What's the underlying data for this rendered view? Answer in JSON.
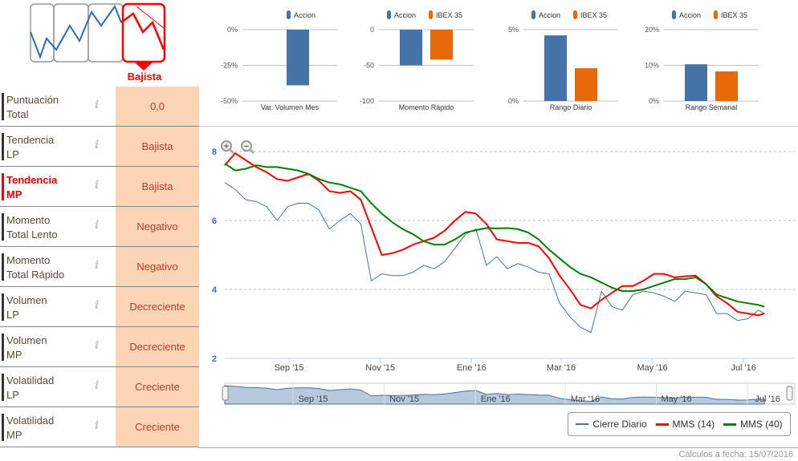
{
  "trend_widget": {
    "label": "Bajista",
    "active_color": "#ff0000"
  },
  "rows": [
    {
      "label1": "Puntuación",
      "label2": "Total",
      "value": "0,0"
    },
    {
      "label1": "Tendencia",
      "label2": "LP",
      "value": "Bajista"
    },
    {
      "label1": "Tendencia",
      "label2": "MP",
      "value": "Bajista",
      "active": true
    },
    {
      "label1": "Momento",
      "label2": "Total Lento",
      "value": "Negativo"
    },
    {
      "label1": "Momento",
      "label2": "Total Rápido",
      "value": "Negativo"
    },
    {
      "label1": "Volumen",
      "label2": "LP",
      "value": "Decreciente"
    },
    {
      "label1": "Volumen",
      "label2": "MP",
      "value": "Decreciente"
    },
    {
      "label1": "Volatilidad",
      "label2": "LP",
      "value": "Creciente"
    },
    {
      "label1": "Volatilidad",
      "label2": "MP",
      "value": "Creciente"
    }
  ],
  "info_icon": "i",
  "colors": {
    "accion": "#4572a7",
    "ibex": "#e8690a",
    "cierre": "#4572a7",
    "mms14": "#ff0000",
    "mms40": "#008000"
  },
  "chart_data": [
    {
      "type": "bar",
      "title": "Var. Volumen Mes",
      "categories": [
        "Var. Volumen Mes"
      ],
      "series": [
        {
          "name": "Accion",
          "values": [
            -39
          ]
        }
      ],
      "ylim": [
        -50,
        0
      ],
      "yticks": [
        "0%",
        "-25%",
        "-50%"
      ],
      "ytick_values": [
        0,
        -25,
        -50
      ]
    },
    {
      "type": "bar",
      "title": "Momento Rápido",
      "categories": [
        "Momento Rápido"
      ],
      "series": [
        {
          "name": "Accion",
          "values": [
            -50
          ]
        },
        {
          "name": "IBEX 35",
          "values": [
            -42
          ]
        }
      ],
      "ylim": [
        -100,
        0
      ],
      "yticks": [
        "0",
        "-50",
        "-100"
      ],
      "ytick_values": [
        0,
        -50,
        -100
      ]
    },
    {
      "type": "bar",
      "title": "Rango Diario",
      "categories": [
        "Rango Diario"
      ],
      "series": [
        {
          "name": "Accion",
          "values": [
            4.6
          ]
        },
        {
          "name": "IBEX 35",
          "values": [
            2.3
          ]
        }
      ],
      "ylim": [
        0,
        5
      ],
      "yticks": [
        "5%",
        "0%"
      ],
      "ytick_values": [
        5,
        0
      ]
    },
    {
      "type": "bar",
      "title": "Rango Semanal",
      "categories": [
        "Rango Semanal"
      ],
      "series": [
        {
          "name": "Accion",
          "values": [
            10.3
          ]
        },
        {
          "name": "IBEX 35",
          "values": [
            8.3
          ]
        }
      ],
      "ylim": [
        0,
        20
      ],
      "yticks": [
        "20%",
        "10%",
        "0%"
      ],
      "ytick_values": [
        20,
        10,
        0
      ]
    },
    {
      "type": "line",
      "ylim": [
        2,
        8
      ],
      "yticks": [
        "8",
        "6",
        "4",
        "2"
      ],
      "ytick_values": [
        8,
        6,
        4,
        2
      ],
      "grid": true,
      "legend": "bottom-right",
      "xticks": [
        "Sep '15",
        "Nov '15",
        "Ene '16",
        "Mar '16",
        "May '16",
        "Jul '16"
      ],
      "xtick_dates": [
        "2015-09-01",
        "2015-11-01",
        "2016-01-01",
        "2016-03-01",
        "2016-05-01",
        "2016-07-01"
      ],
      "x": [
        "2015-07-20",
        "2015-07-27",
        "2015-08-03",
        "2015-08-10",
        "2015-08-17",
        "2015-08-24",
        "2015-08-31",
        "2015-09-07",
        "2015-09-14",
        "2015-09-21",
        "2015-09-28",
        "2015-10-05",
        "2015-10-12",
        "2015-10-19",
        "2015-10-26",
        "2015-11-02",
        "2015-11-09",
        "2015-11-16",
        "2015-11-23",
        "2015-11-30",
        "2015-12-07",
        "2015-12-14",
        "2015-12-21",
        "2015-12-28",
        "2016-01-04",
        "2016-01-11",
        "2016-01-18",
        "2016-01-25",
        "2016-02-01",
        "2016-02-08",
        "2016-02-15",
        "2016-02-22",
        "2016-02-29",
        "2016-03-07",
        "2016-03-14",
        "2016-03-21",
        "2016-03-28",
        "2016-04-04",
        "2016-04-11",
        "2016-04-18",
        "2016-04-25",
        "2016-05-02",
        "2016-05-09",
        "2016-05-16",
        "2016-05-23",
        "2016-05-30",
        "2016-06-06",
        "2016-06-13",
        "2016-06-20",
        "2016-06-27",
        "2016-07-04",
        "2016-07-11",
        "2016-07-15"
      ],
      "series": [
        {
          "name": "Cierre Diario",
          "values": [
            7.1,
            6.9,
            6.6,
            6.55,
            6.4,
            6.0,
            6.4,
            6.5,
            6.5,
            6.3,
            5.75,
            6.0,
            6.2,
            5.9,
            4.25,
            4.45,
            4.4,
            4.4,
            4.5,
            4.7,
            4.6,
            4.8,
            5.2,
            5.6,
            5.75,
            4.7,
            4.95,
            4.6,
            4.75,
            4.65,
            4.5,
            4.45,
            3.6,
            3.2,
            2.9,
            2.75,
            3.95,
            3.5,
            3.4,
            3.85,
            3.95,
            3.9,
            3.8,
            3.65,
            3.95,
            3.9,
            3.85,
            3.3,
            3.3,
            3.1,
            3.15,
            3.4,
            3.3
          ]
        },
        {
          "name": "MMS (14)",
          "values": [
            7.6,
            7.95,
            7.75,
            7.55,
            7.4,
            7.2,
            7.15,
            7.25,
            7.35,
            7.15,
            6.85,
            6.8,
            6.85,
            6.6,
            5.8,
            5.0,
            5.05,
            5.15,
            5.3,
            5.4,
            5.5,
            5.7,
            6.0,
            6.25,
            6.2,
            5.9,
            5.45,
            5.4,
            5.35,
            5.35,
            5.25,
            4.9,
            4.4,
            4.0,
            3.55,
            3.45,
            3.7,
            3.9,
            4.1,
            4.1,
            4.25,
            4.45,
            4.45,
            4.35,
            4.38,
            4.4,
            4.15,
            3.8,
            3.6,
            3.35,
            3.3,
            3.25,
            3.3
          ]
        },
        {
          "name": "MMS (40)",
          "values": [
            7.65,
            7.45,
            7.5,
            7.6,
            7.55,
            7.55,
            7.5,
            7.45,
            7.35,
            7.2,
            7.1,
            7.05,
            6.95,
            6.85,
            6.5,
            6.2,
            5.95,
            5.75,
            5.6,
            5.4,
            5.3,
            5.3,
            5.45,
            5.65,
            5.72,
            5.78,
            5.77,
            5.78,
            5.75,
            5.65,
            5.45,
            5.15,
            4.9,
            4.65,
            4.45,
            4.35,
            4.2,
            4.05,
            3.95,
            3.95,
            4.0,
            4.1,
            4.2,
            4.3,
            4.3,
            4.35,
            4.15,
            3.85,
            3.75,
            3.65,
            3.6,
            3.55,
            3.5
          ]
        }
      ]
    }
  ],
  "legend": [
    "Cierre Diario",
    "MMS (14)",
    "MMS (40)"
  ],
  "footer": "Cálculos a fecha: 15/07/2016"
}
